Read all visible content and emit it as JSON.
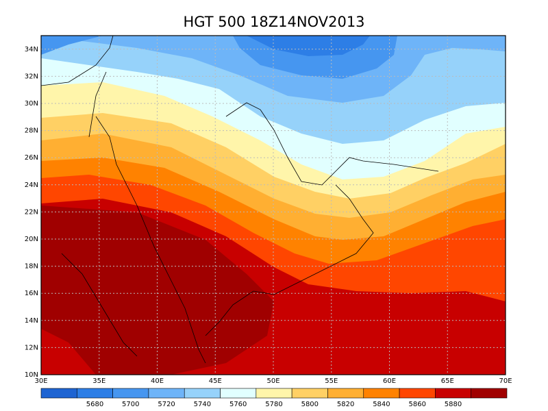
{
  "title": "HGT 500 18Z14NOV2013",
  "map": {
    "lon_labels": [
      "30E",
      "35E",
      "40E",
      "45E",
      "50E",
      "55E",
      "60E",
      "65E",
      "70E"
    ],
    "lat_labels": [
      "10N",
      "12N",
      "14N",
      "16N",
      "18N",
      "20N",
      "22N",
      "24N",
      "26N",
      "28N",
      "30N",
      "32N",
      "34N"
    ],
    "legend": {
      "colors": [
        "#1e64d2",
        "#2d7ee6",
        "#4696f0",
        "#6eb4f8",
        "#96d2fa",
        "#e1ffff",
        "#fff5aa",
        "#ffd064",
        "#ffaf32",
        "#ff8200",
        "#ff4600",
        "#c80000",
        "#a00000"
      ],
      "labels": [
        "5680",
        "5700",
        "5720",
        "5740",
        "5760",
        "5780",
        "5800",
        "5820",
        "5840",
        "5860",
        "5880"
      ]
    }
  }
}
